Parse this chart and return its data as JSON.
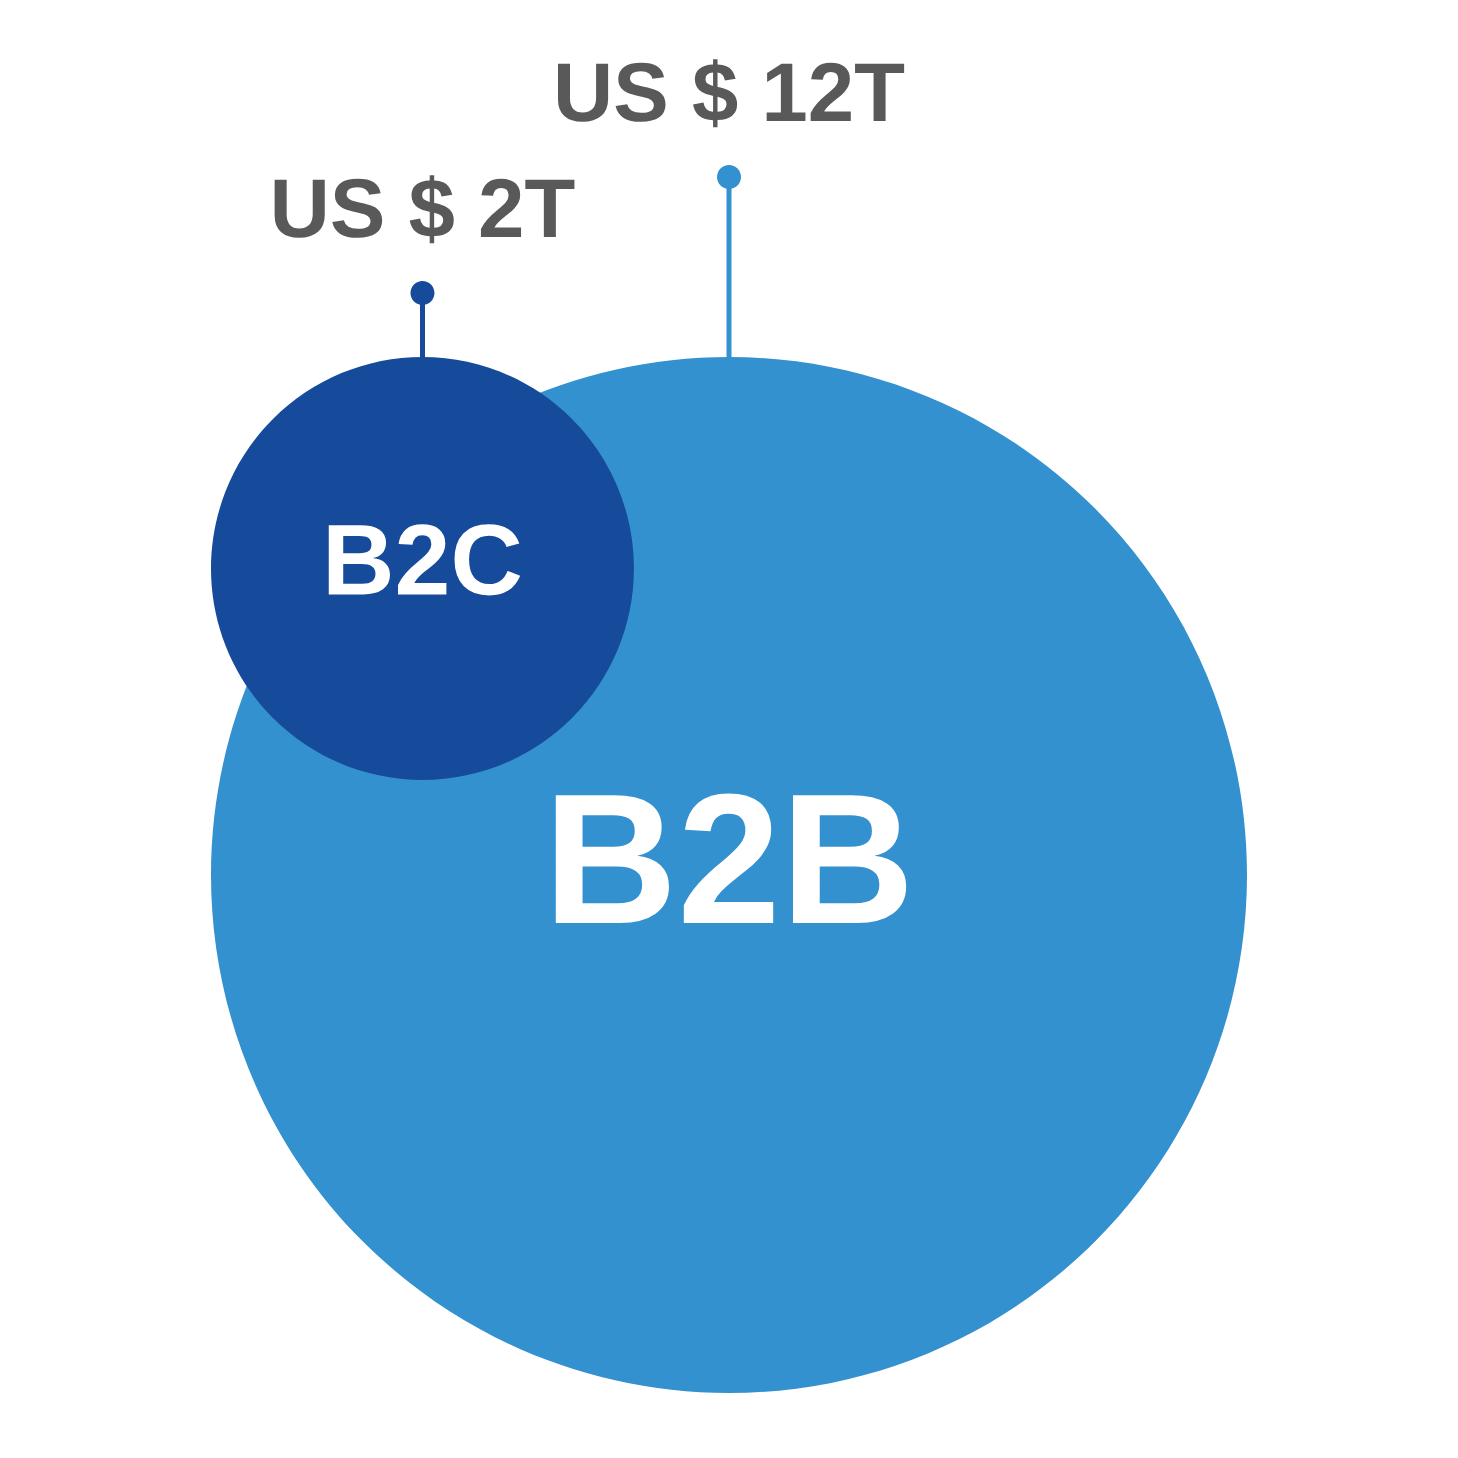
{
  "chart_data": {
    "type": "other",
    "categories": [
      "B2C",
      "B2B"
    ],
    "values": [
      2000000000000.0,
      12000000000000.0
    ],
    "value_labels": [
      "US $ 2T",
      "US $ 12T"
    ],
    "colors": [
      "#164b9b",
      "#3391cf"
    ]
  }
}
